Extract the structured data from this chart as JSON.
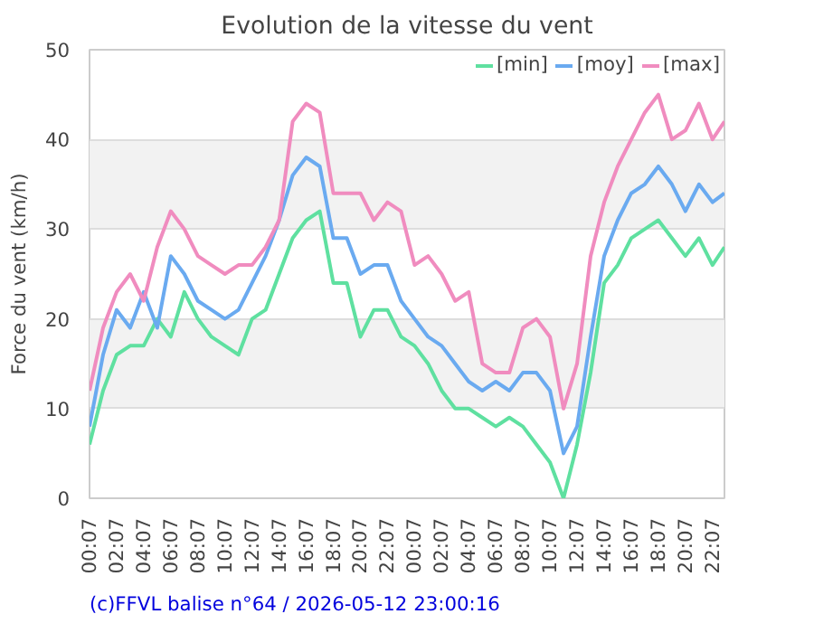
{
  "chart_data": {
    "type": "line",
    "title": "Evolution de la vitesse du vent",
    "ylabel": "Force du vent (km/h)",
    "annotations": [
      "(c)FFVL balise n°64 / 2026-05-12 23:00:16"
    ],
    "x": [
      "2026-05-11T00:07",
      "2026-05-11T01:07",
      "2026-05-11T02:07",
      "2026-05-11T03:07",
      "2026-05-11T04:07",
      "2026-05-11T05:07",
      "2026-05-11T06:07",
      "2026-05-11T07:07",
      "2026-05-11T08:07",
      "2026-05-11T09:07",
      "2026-05-11T10:07",
      "2026-05-11T11:07",
      "2026-05-11T12:07",
      "2026-05-11T13:07",
      "2026-05-11T14:07",
      "2026-05-11T15:07",
      "2026-05-11T16:07",
      "2026-05-11T17:07",
      "2026-05-11T18:07",
      "2026-05-11T19:07",
      "2026-05-11T20:07",
      "2026-05-11T21:07",
      "2026-05-11T22:07",
      "2026-05-11T23:07",
      "2026-05-12T00:07",
      "2026-05-12T01:07",
      "2026-05-12T02:07",
      "2026-05-12T03:07",
      "2026-05-12T04:07",
      "2026-05-12T05:07",
      "2026-05-12T06:07",
      "2026-05-12T07:07",
      "2026-05-12T08:07",
      "2026-05-12T09:07",
      "2026-05-12T10:07",
      "2026-05-12T11:07",
      "2026-05-12T12:07",
      "2026-05-12T13:07",
      "2026-05-12T14:07",
      "2026-05-12T15:07",
      "2026-05-12T16:07",
      "2026-05-12T17:07",
      "2026-05-12T18:07",
      "2026-05-12T19:07",
      "2026-05-12T20:07",
      "2026-05-12T21:07",
      "2026-05-12T22:07",
      "2026-05-12T23:00"
    ],
    "series": [
      {
        "name": "[min]",
        "color": "#5fe0a0",
        "values": [
          6,
          12,
          16,
          17,
          17,
          20,
          18,
          23,
          20,
          18,
          17,
          16,
          20,
          21,
          25,
          29,
          31,
          32,
          24,
          24,
          18,
          21,
          21,
          18,
          17,
          15,
          12,
          10,
          10,
          9,
          8,
          9,
          8,
          6,
          4,
          0,
          6,
          14,
          24,
          26,
          29,
          30,
          31,
          29,
          27,
          29,
          26,
          28
        ]
      },
      {
        "name": "[moy]",
        "color": "#6aaaf0",
        "values": [
          8,
          16,
          21,
          19,
          23,
          19,
          27,
          25,
          22,
          21,
          20,
          21,
          24,
          27,
          31,
          36,
          38,
          37,
          29,
          29,
          25,
          26,
          26,
          22,
          20,
          18,
          17,
          15,
          13,
          12,
          13,
          12,
          14,
          14,
          12,
          5,
          8,
          18,
          27,
          31,
          34,
          35,
          37,
          35,
          32,
          35,
          33,
          34
        ]
      },
      {
        "name": "[max]",
        "color": "#f08cbf",
        "values": [
          12,
          19,
          23,
          25,
          22,
          28,
          32,
          30,
          27,
          26,
          25,
          26,
          26,
          28,
          31,
          42,
          44,
          43,
          34,
          34,
          34,
          31,
          33,
          32,
          26,
          27,
          25,
          22,
          23,
          15,
          14,
          14,
          19,
          20,
          18,
          10,
          15,
          27,
          33,
          37,
          40,
          43,
          45,
          40,
          41,
          44,
          40,
          42
        ]
      }
    ],
    "xlim": [
      "2026-05-11T00:07",
      "2026-05-12T23:00"
    ],
    "xticks": [
      {
        "value": "2026-05-11T00:07",
        "label": "00:07"
      },
      {
        "value": "2026-05-11T02:07",
        "label": "02:07"
      },
      {
        "value": "2026-05-11T04:07",
        "label": "04:07"
      },
      {
        "value": "2026-05-11T06:07",
        "label": "06:07"
      },
      {
        "value": "2026-05-11T08:07",
        "label": "08:07"
      },
      {
        "value": "2026-05-11T10:07",
        "label": "10:07"
      },
      {
        "value": "2026-05-11T12:07",
        "label": "12:07"
      },
      {
        "value": "2026-05-11T14:07",
        "label": "14:07"
      },
      {
        "value": "2026-05-11T16:07",
        "label": "16:07"
      },
      {
        "value": "2026-05-11T18:07",
        "label": "18:07"
      },
      {
        "value": "2026-05-11T20:07",
        "label": "20:07"
      },
      {
        "value": "2026-05-11T22:07",
        "label": "22:07"
      },
      {
        "value": "2026-05-12T00:07",
        "label": "00:07"
      },
      {
        "value": "2026-05-12T02:07",
        "label": "02:07"
      },
      {
        "value": "2026-05-12T04:07",
        "label": "04:07"
      },
      {
        "value": "2026-05-12T06:07",
        "label": "06:07"
      },
      {
        "value": "2026-05-12T08:07",
        "label": "08:07"
      },
      {
        "value": "2026-05-12T10:07",
        "label": "10:07"
      },
      {
        "value": "2026-05-12T12:07",
        "label": "12:07"
      },
      {
        "value": "2026-05-12T14:07",
        "label": "14:07"
      },
      {
        "value": "2026-05-12T16:07",
        "label": "16:07"
      },
      {
        "value": "2026-05-12T18:07",
        "label": "18:07"
      },
      {
        "value": "2026-05-12T20:07",
        "label": "20:07"
      },
      {
        "value": "2026-05-12T22:07",
        "label": "22:07"
      }
    ],
    "ylim": [
      0,
      50
    ],
    "yticks": [
      0,
      10,
      20,
      30,
      40,
      50
    ],
    "grid": "y",
    "legend": "top right",
    "marker": "none",
    "line_style": "solid"
  }
}
